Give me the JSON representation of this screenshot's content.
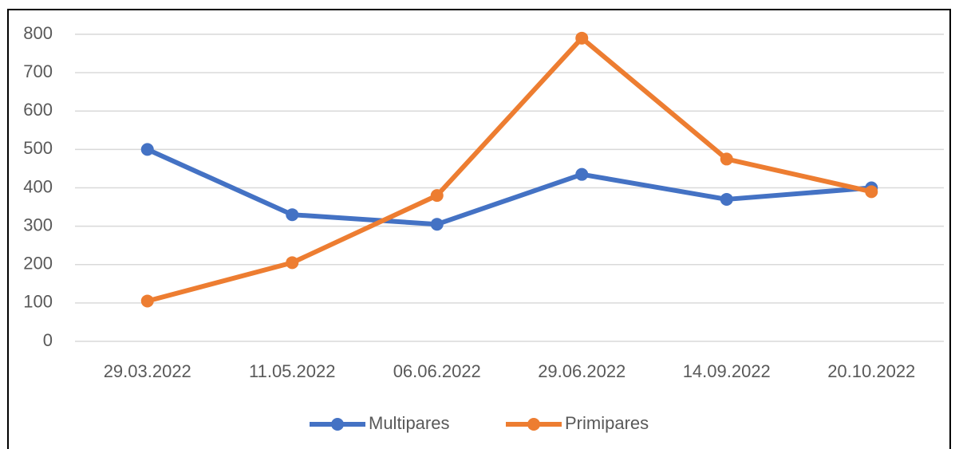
{
  "chart_data": {
    "type": "line",
    "categories": [
      "29.03.2022",
      "11.05.2022",
      "06.06.2022",
      "29.06.2022",
      "14.09.2022",
      "20.10.2022"
    ],
    "series": [
      {
        "name": "Multipares",
        "color": "#4472c4",
        "values": [
          500,
          330,
          305,
          435,
          370,
          400
        ]
      },
      {
        "name": "Primipares",
        "color": "#ed7d31",
        "values": [
          105,
          205,
          380,
          790,
          475,
          390
        ]
      }
    ],
    "ylim": [
      0,
      800
    ],
    "yticks": [
      0,
      100,
      200,
      300,
      400,
      500,
      600,
      700,
      800
    ],
    "grid": true,
    "legend": "bottom"
  }
}
